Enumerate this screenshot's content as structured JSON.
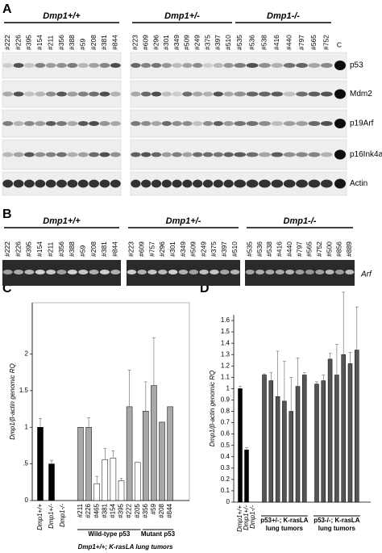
{
  "panel_a": {
    "letter": "A",
    "groups": [
      {
        "name": "Dmp1+/+",
        "samples": [
          "#222",
          "#226",
          "#395",
          "#154",
          "#211",
          "#356",
          "#388",
          "#59",
          "#208",
          "#381",
          "#844"
        ]
      },
      {
        "name": "Dmp1+/-",
        "samples": [
          "#223",
          "#609",
          "#296",
          "#301",
          "#349",
          "#509",
          "#249",
          "#375",
          "#397",
          "#510"
        ]
      },
      {
        "name": "Dmp1-/-",
        "samples": [
          "#535",
          "#536",
          "#538",
          "#416",
          "#440",
          "#797",
          "#565",
          "#752"
        ]
      }
    ],
    "control": "C",
    "rows": [
      "p53",
      "Mdm2",
      "p19Arf",
      "p16Ink4a",
      "Actin"
    ]
  },
  "panel_b": {
    "letter": "B",
    "groups": [
      {
        "name": "Dmp1+/+",
        "samples": [
          "#222",
          "#226",
          "#395",
          "#154",
          "#211",
          "#356",
          "#388",
          "#59",
          "#208",
          "#381",
          "#844"
        ]
      },
      {
        "name": "Dmp1+/-",
        "samples": [
          "#223",
          "#609",
          "#757",
          "#296",
          "#301",
          "#349",
          "#509",
          "#249",
          "#375",
          "#397",
          "#510"
        ]
      },
      {
        "name": "Dmp1-/-",
        "samples": [
          "#535",
          "#536",
          "#538",
          "#416",
          "#440",
          "#797",
          "#565",
          "#752",
          "#500",
          "#856",
          "#889"
        ]
      }
    ],
    "row": "Arf"
  },
  "chart_data": [
    {
      "type": "bar",
      "letter": "C",
      "y_label": "Dmp1/β-actin genomic RQ",
      "categories": [
        "Dmp1+/+",
        "Dmp1+/-",
        "Dmp1-/-",
        "#211",
        "#226",
        "#465",
        "#381",
        "#154",
        "#395",
        "#222",
        "#205",
        "#356",
        "#59",
        "#208",
        "#844"
      ],
      "values": [
        1.0,
        0.5,
        0,
        1.0,
        1.0,
        0.23,
        0.56,
        0.58,
        0.27,
        1.28,
        0.52,
        1.22,
        1.57,
        1.07,
        1.28
      ],
      "errors": [
        0.12,
        0.05,
        null,
        null,
        0.13,
        0.1,
        0.15,
        0.1,
        0.03,
        0.5,
        null,
        0.4,
        0.65,
        null,
        null
      ],
      "colors": [
        "#000000",
        "#000000",
        "#000000",
        "#a8a8a8",
        "#a8a8a8",
        "#ffffff",
        "#ffffff",
        "#ffffff",
        "#ffffff",
        "#a8a8a8",
        "#ffffff",
        "#a8a8a8",
        "#a8a8a8",
        "#a8a8a8",
        "#a8a8a8"
      ],
      "ylim": [
        0,
        2.7
      ],
      "yticks": [
        0,
        {
          "value": 0.5,
          "label": ".5"
        },
        1,
        1.5,
        2
      ],
      "group_labels": [
        [
          "Wild-type p53"
        ],
        [
          "Mutant p53"
        ]
      ],
      "caption": "Dmp1+/+; K-rasLA lung tumors"
    },
    {
      "type": "bar",
      "letter": "D",
      "y_label": "Dmp1/β-actin genomic RQ",
      "categories": [
        "Dmp1+/+",
        "Dmp1+/-",
        "Dmp1-/-",
        null,
        null,
        null,
        null,
        null,
        null,
        null,
        null,
        null,
        null,
        null,
        null,
        null,
        null
      ],
      "values": [
        1.0,
        0.46,
        0,
        1.12,
        1.07,
        0.93,
        0.89,
        0.8,
        1.02,
        1.12,
        1.04,
        1.07,
        1.26,
        1.12,
        1.3,
        1.22,
        1.34
      ],
      "errors": [
        0.02,
        0.02,
        null,
        0.01,
        0.07,
        0.4,
        0.35,
        0.3,
        0.25,
        0.02,
        0.02,
        0.05,
        0.05,
        0.27,
        0.55,
        0.1,
        0.38
      ],
      "colors": [
        "#000000",
        "#000000",
        "#000000",
        "#555555",
        "#555555",
        "#555555",
        "#555555",
        "#555555",
        "#555555",
        "#555555",
        "#555555",
        "#555555",
        "#555555",
        "#555555",
        "#555555",
        "#555555",
        "#555555"
      ],
      "ylim": [
        0,
        1.65
      ],
      "yticks": [
        0,
        0.1,
        0.2,
        0.3,
        0.4,
        0.5,
        0.6,
        0.7,
        0.8,
        0.9,
        1,
        1.1,
        1.2,
        1.3,
        1.4,
        1.5,
        1.6
      ],
      "group_labels": [
        [
          "p53+/-; K-rasLA",
          "lung tumors"
        ],
        [
          "p53-/-; K-rasLA",
          "lung tumors"
        ]
      ]
    }
  ]
}
